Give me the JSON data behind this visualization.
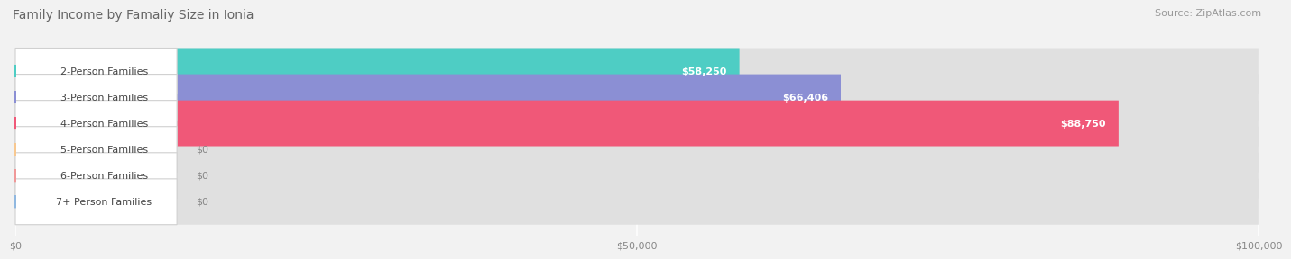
{
  "title": "Family Income by Famaliy Size in Ionia",
  "source": "Source: ZipAtlas.com",
  "categories": [
    "2-Person Families",
    "3-Person Families",
    "4-Person Families",
    "5-Person Families",
    "6-Person Families",
    "7+ Person Families"
  ],
  "values": [
    58250,
    66406,
    88750,
    0,
    0,
    0
  ],
  "bar_colors": [
    "#4ecdc4",
    "#8b8fd4",
    "#f05878",
    "#f8c890",
    "#f09898",
    "#90b8e0"
  ],
  "label_bg_colors": [
    "#ffffff",
    "#ffffff",
    "#ffffff",
    "#ffffff",
    "#ffffff",
    "#ffffff"
  ],
  "value_labels": [
    "$58,250",
    "$66,406",
    "$88,750",
    "$0",
    "$0",
    "$0"
  ],
  "xlim": [
    0,
    100000
  ],
  "xticks": [
    0,
    50000,
    100000
  ],
  "xticklabels": [
    "$0",
    "$50,000",
    "$100,000"
  ],
  "background_color": "#f2f2f2",
  "bar_bg_color": "#e0e0e0",
  "title_fontsize": 10,
  "source_fontsize": 8,
  "label_fontsize": 8,
  "value_fontsize": 8
}
